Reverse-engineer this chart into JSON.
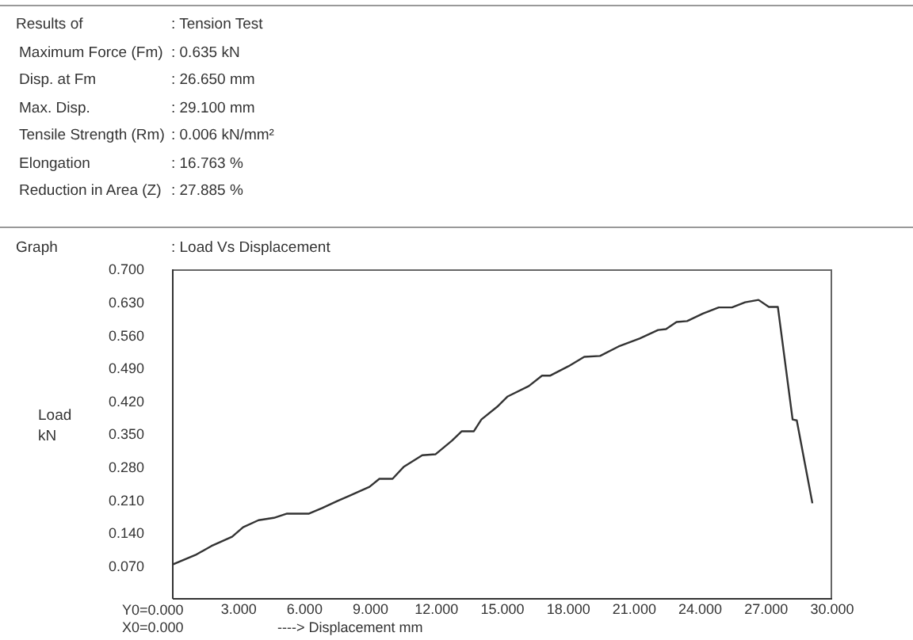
{
  "chart_data": {
    "type": "line",
    "title": "Graph : Load Vs Displacement",
    "xlabel": "----> Displacement  mm",
    "ylabel": "Load\nkN",
    "annotations": [
      "Results of : Tension Test",
      "Maximum Force (Fm) : 0.635  kN",
      "Disp. at Fm : 26.650  mm",
      "Max. Disp. : 29.100  mm",
      "Tensile Strength (Rm) : 0.006  kN/mm²",
      "Elongation : 16.763  %",
      "Reduction in Area (Z) : 27.885  %",
      "Y0=0.000",
      "X0=0.000"
    ],
    "x": [
      0,
      1.03,
      1.75,
      2.7,
      3.2,
      3.9,
      4.6,
      5.2,
      6.2,
      6.8,
      7.5,
      8.0,
      8.95,
      9.4,
      10.0,
      10.5,
      11.35,
      11.95,
      12.7,
      13.15,
      13.7,
      14.04,
      14.76,
      15.24,
      16.2,
      16.8,
      17.16,
      18.0,
      18.72,
      19.44,
      20.28,
      21.24,
      22.08,
      22.44,
      22.92,
      23.4,
      24.12,
      24.84,
      25.44,
      26.04,
      26.65,
      27.12,
      27.53,
      28.2,
      28.39,
      29.1
    ],
    "series": [
      {
        "color": "#333333",
        "values": [
          0.073,
          0.093,
          0.112,
          0.132,
          0.152,
          0.167,
          0.172,
          0.181,
          0.181,
          0.193,
          0.208,
          0.218,
          0.238,
          0.255,
          0.255,
          0.28,
          0.305,
          0.307,
          0.336,
          0.356,
          0.356,
          0.381,
          0.408,
          0.43,
          0.452,
          0.474,
          0.474,
          0.494,
          0.514,
          0.516,
          0.536,
          0.553,
          0.571,
          0.573,
          0.588,
          0.59,
          0.606,
          0.619,
          0.619,
          0.63,
          0.635,
          0.62,
          0.62,
          0.381,
          0.379,
          0.203
        ]
      }
    ],
    "xlim": [
      0,
      30
    ],
    "xticks": [
      {
        "value": 0,
        "label": null
      },
      {
        "value": 3,
        "label": "3.000"
      },
      {
        "value": 6,
        "label": "6.000"
      },
      {
        "value": 9,
        "label": "9.000"
      },
      {
        "value": 12,
        "label": "12.000"
      },
      {
        "value": 15,
        "label": "15.000"
      },
      {
        "value": 18,
        "label": "18.000"
      },
      {
        "value": 21,
        "label": "21.000"
      },
      {
        "value": 24,
        "label": "24.000"
      },
      {
        "value": 27,
        "label": "27.000"
      },
      {
        "value": 30,
        "label": "30.000"
      }
    ],
    "ylim": [
      0,
      0.7
    ],
    "yticks": [
      {
        "value": 0,
        "label": null
      },
      {
        "value": 0.07,
        "label": "0.070"
      },
      {
        "value": 0.14,
        "label": "0.140"
      },
      {
        "value": 0.21,
        "label": "0.210"
      },
      {
        "value": 0.28,
        "label": "0.280"
      },
      {
        "value": 0.35,
        "label": "0.350"
      },
      {
        "value": 0.42,
        "label": "0.420"
      },
      {
        "value": 0.49,
        "label": "0.490"
      },
      {
        "value": 0.56,
        "label": "0.560"
      },
      {
        "value": 0.63,
        "label": "0.630"
      },
      {
        "value": 0.7,
        "label": "0.700"
      }
    ],
    "grid": false,
    "legend": false
  }
}
